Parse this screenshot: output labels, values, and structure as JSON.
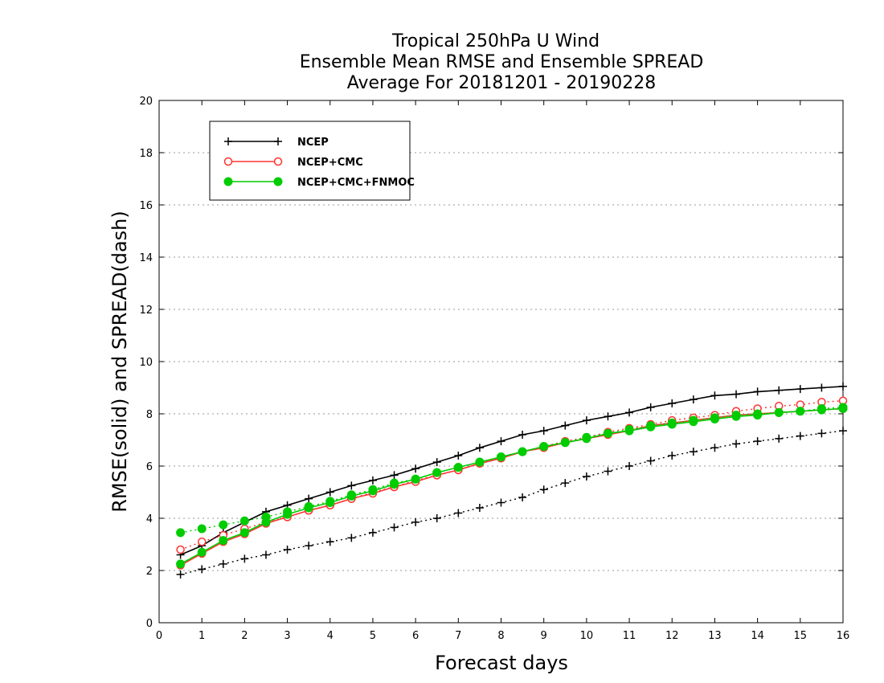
{
  "chart_data": {
    "type": "line",
    "title_lines": [
      "Tropical 250hPa U Wind",
      "Ensemble Mean RMSE and Ensemble SPREAD",
      "Average For 20181201 - 20190228"
    ],
    "xlabel": "Forecast days",
    "ylabel": "RMSE(solid) and SPREAD(dash)",
    "xlim": [
      0,
      16
    ],
    "ylim": [
      0,
      20
    ],
    "xticks": [
      "0",
      "1",
      "2",
      "3",
      "4",
      "5",
      "6",
      "7",
      "8",
      "9",
      "10",
      "11",
      "12",
      "13",
      "14",
      "15",
      "16"
    ],
    "yticks": [
      "0",
      "2",
      "4",
      "6",
      "8",
      "10",
      "12",
      "14",
      "16",
      "18",
      "20"
    ],
    "grid": "horizontal dotted",
    "legend_position": "top-left",
    "x": [
      0.5,
      1,
      1.5,
      2,
      2.5,
      3,
      3.5,
      4,
      4.5,
      5,
      5.5,
      6,
      6.5,
      7,
      7.5,
      8,
      8.5,
      9,
      9.5,
      10,
      10.5,
      11,
      11.5,
      12,
      12.5,
      13,
      13.5,
      14,
      14.5,
      15,
      15.5,
      16
    ],
    "series": [
      {
        "name": "NCEP",
        "color": "#000000",
        "marker": "plus",
        "rmse": [
          2.6,
          2.95,
          3.45,
          3.85,
          4.25,
          4.5,
          4.75,
          5.0,
          5.25,
          5.45,
          5.65,
          5.9,
          6.15,
          6.4,
          6.7,
          6.95,
          7.2,
          7.35,
          7.55,
          7.75,
          7.9,
          8.05,
          8.25,
          8.4,
          8.55,
          8.7,
          8.75,
          8.85,
          8.9,
          8.95,
          9.0,
          9.05
        ],
        "spread": [
          1.85,
          2.05,
          2.25,
          2.45,
          2.6,
          2.8,
          2.95,
          3.1,
          3.25,
          3.45,
          3.65,
          3.85,
          4.0,
          4.2,
          4.4,
          4.6,
          4.8,
          5.1,
          5.35,
          5.6,
          5.8,
          6.0,
          6.2,
          6.4,
          6.55,
          6.7,
          6.85,
          6.95,
          7.05,
          7.15,
          7.25,
          7.35
        ]
      },
      {
        "name": "NCEP+CMC",
        "color": "#ff3333",
        "marker": "open-circle",
        "rmse": [
          2.2,
          2.65,
          3.1,
          3.4,
          3.8,
          4.05,
          4.3,
          4.5,
          4.75,
          4.95,
          5.2,
          5.4,
          5.65,
          5.85,
          6.1,
          6.3,
          6.55,
          6.7,
          6.9,
          7.05,
          7.2,
          7.35,
          7.55,
          7.65,
          7.75,
          7.85,
          7.95,
          8.0,
          8.05,
          8.1,
          8.15,
          8.2
        ],
        "spread": [
          2.8,
          3.1,
          3.35,
          3.6,
          3.85,
          4.05,
          4.3,
          4.5,
          4.75,
          5.0,
          5.2,
          5.45,
          5.65,
          5.85,
          6.1,
          6.3,
          6.55,
          6.75,
          6.95,
          7.1,
          7.3,
          7.45,
          7.6,
          7.75,
          7.85,
          7.95,
          8.1,
          8.2,
          8.3,
          8.35,
          8.45,
          8.5
        ]
      },
      {
        "name": "NCEP+CMC+FNMOC",
        "color": "#00cc00",
        "marker": "filled-circle",
        "rmse": [
          2.25,
          2.7,
          3.15,
          3.45,
          3.85,
          4.15,
          4.4,
          4.6,
          4.85,
          5.05,
          5.3,
          5.5,
          5.75,
          5.95,
          6.15,
          6.35,
          6.55,
          6.75,
          6.9,
          7.05,
          7.25,
          7.35,
          7.5,
          7.6,
          7.7,
          7.8,
          7.9,
          7.95,
          8.05,
          8.1,
          8.15,
          8.2
        ],
        "spread": [
          3.45,
          3.6,
          3.75,
          3.9,
          4.05,
          4.25,
          4.45,
          4.65,
          4.9,
          5.1,
          5.35,
          5.5,
          5.75,
          5.95,
          6.15,
          6.35,
          6.55,
          6.75,
          6.9,
          7.1,
          7.25,
          7.4,
          7.55,
          7.65,
          7.75,
          7.85,
          7.95,
          8.0,
          8.05,
          8.1,
          8.2,
          8.25
        ]
      }
    ]
  }
}
